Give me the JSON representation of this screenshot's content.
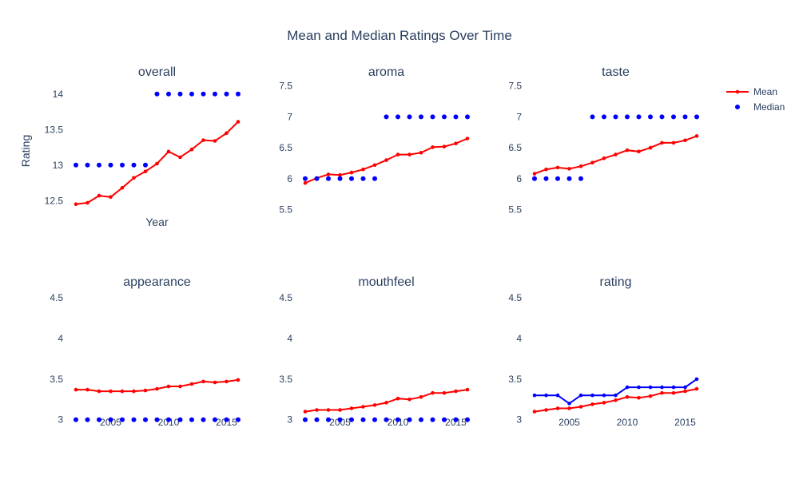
{
  "chart_data": {
    "type": "line",
    "title": "Mean and Median Ratings Over Time",
    "x": [
      2002,
      2003,
      2004,
      2005,
      2006,
      2007,
      2008,
      2009,
      2010,
      2011,
      2012,
      2013,
      2014,
      2015,
      2016
    ],
    "legend": {
      "placement": "top-right",
      "items": [
        {
          "name": "Mean",
          "color": "#ff0000",
          "style": "line+markers"
        },
        {
          "name": "Median",
          "color": "#0000ff",
          "style": "markers"
        }
      ]
    },
    "subplots": [
      {
        "title": "overall",
        "xlabel": "Year",
        "ylabel": "Rating",
        "ylim": [
          12.2,
          14.2
        ],
        "yticks": [
          12.5,
          13,
          13.5,
          14
        ],
        "ytick_labels": [
          "12.5",
          "13",
          "13.5",
          "14"
        ],
        "xticks": [],
        "xtick_labels": [],
        "series": [
          {
            "name": "Mean",
            "mode": "lines+markers",
            "values": [
              12.45,
              12.47,
              12.57,
              12.55,
              12.68,
              12.82,
              12.91,
              13.02,
              13.19,
              13.11,
              13.22,
              13.35,
              13.34,
              13.45,
              13.61
            ]
          },
          {
            "name": "Median",
            "mode": "markers",
            "values": [
              13,
              13,
              13,
              13,
              13,
              13,
              13,
              14,
              14,
              14,
              14,
              14,
              14,
              14,
              14
            ]
          }
        ]
      },
      {
        "title": "aroma",
        "ylim": [
          5.3,
          7.6
        ],
        "yticks": [
          5.5,
          6,
          6.5,
          7,
          7.5
        ],
        "ytick_labels": [
          "5.5",
          "6",
          "6.5",
          "7",
          "7.5"
        ],
        "xticks": [],
        "xtick_labels": [],
        "series": [
          {
            "name": "Mean",
            "mode": "lines+markers",
            "values": [
              5.93,
              6.01,
              6.07,
              6.06,
              6.1,
              6.15,
              6.22,
              6.3,
              6.39,
              6.39,
              6.42,
              6.51,
              6.52,
              6.57,
              6.65
            ]
          },
          {
            "name": "Median",
            "mode": "markers",
            "values": [
              6,
              6,
              6,
              6,
              6,
              6,
              6,
              7,
              7,
              7,
              7,
              7,
              7,
              7,
              7
            ]
          }
        ]
      },
      {
        "title": "taste",
        "ylim": [
          5.3,
          7.6
        ],
        "yticks": [
          5.5,
          6,
          6.5,
          7,
          7.5
        ],
        "ytick_labels": [
          "5.5",
          "6",
          "6.5",
          "7",
          "7.5"
        ],
        "xticks": [],
        "xtick_labels": [],
        "series": [
          {
            "name": "Mean",
            "mode": "lines+markers",
            "values": [
              6.08,
              6.15,
              6.18,
              6.16,
              6.2,
              6.26,
              6.33,
              6.39,
              6.46,
              6.44,
              6.5,
              6.58,
              6.58,
              6.62,
              6.69
            ]
          },
          {
            "name": "Median",
            "mode": "markers",
            "values": [
              6,
              6,
              6,
              6,
              6,
              7,
              7,
              7,
              7,
              7,
              7,
              7,
              7,
              7,
              7
            ]
          }
        ]
      },
      {
        "title": "appearance",
        "ylim": [
          2.85,
          4.6
        ],
        "yticks": [
          3,
          3.5,
          4,
          4.5
        ],
        "ytick_labels": [
          "3",
          "3.5",
          "4",
          "4.5"
        ],
        "xticks": [
          2005,
          2010,
          2015
        ],
        "xtick_labels": [
          "2005",
          "2010",
          "2015"
        ],
        "series": [
          {
            "name": "Mean",
            "mode": "lines+markers",
            "values": [
              3.37,
              3.37,
              3.35,
              3.35,
              3.35,
              3.35,
              3.36,
              3.38,
              3.41,
              3.41,
              3.44,
              3.47,
              3.46,
              3.47,
              3.49
            ]
          },
          {
            "name": "Median",
            "mode": "markers",
            "values": [
              3,
              3,
              3,
              3,
              3,
              3,
              3,
              3,
              3,
              3,
              3,
              3,
              3,
              3,
              3
            ]
          }
        ]
      },
      {
        "title": "mouthfeel",
        "ylim": [
          2.85,
          4.6
        ],
        "yticks": [
          3,
          3.5,
          4,
          4.5
        ],
        "ytick_labels": [
          "3",
          "3.5",
          "4",
          "4.5"
        ],
        "xticks": [
          2005,
          2010,
          2015
        ],
        "xtick_labels": [
          "2005",
          "2010",
          "2015"
        ],
        "series": [
          {
            "name": "Mean",
            "mode": "lines+markers",
            "values": [
              3.1,
              3.12,
              3.12,
              3.12,
              3.14,
              3.16,
              3.18,
              3.21,
              3.26,
              3.25,
              3.28,
              3.33,
              3.33,
              3.35,
              3.37
            ]
          },
          {
            "name": "Median",
            "mode": "markers",
            "values": [
              3,
              3,
              3,
              3,
              3,
              3,
              3,
              3,
              3,
              3,
              3,
              3,
              3,
              3,
              3
            ]
          }
        ]
      },
      {
        "title": "rating",
        "ylim": [
          2.85,
          4.6
        ],
        "yticks": [
          3,
          3.5,
          4,
          4.5
        ],
        "ytick_labels": [
          "3",
          "3.5",
          "4",
          "4.5"
        ],
        "xticks": [
          2005,
          2010,
          2015
        ],
        "xtick_labels": [
          "2005",
          "2010",
          "2015"
        ],
        "series": [
          {
            "name": "Mean",
            "mode": "lines+markers",
            "values": [
              3.1,
              3.12,
              3.14,
              3.14,
              3.16,
              3.19,
              3.21,
              3.24,
              3.28,
              3.27,
              3.29,
              3.33,
              3.33,
              3.35,
              3.38
            ]
          },
          {
            "name": "Median",
            "mode": "lines+markers",
            "values": [
              3.3,
              3.3,
              3.3,
              3.2,
              3.3,
              3.3,
              3.3,
              3.3,
              3.4,
              3.4,
              3.4,
              3.4,
              3.4,
              3.4,
              3.5
            ]
          }
        ]
      }
    ]
  }
}
